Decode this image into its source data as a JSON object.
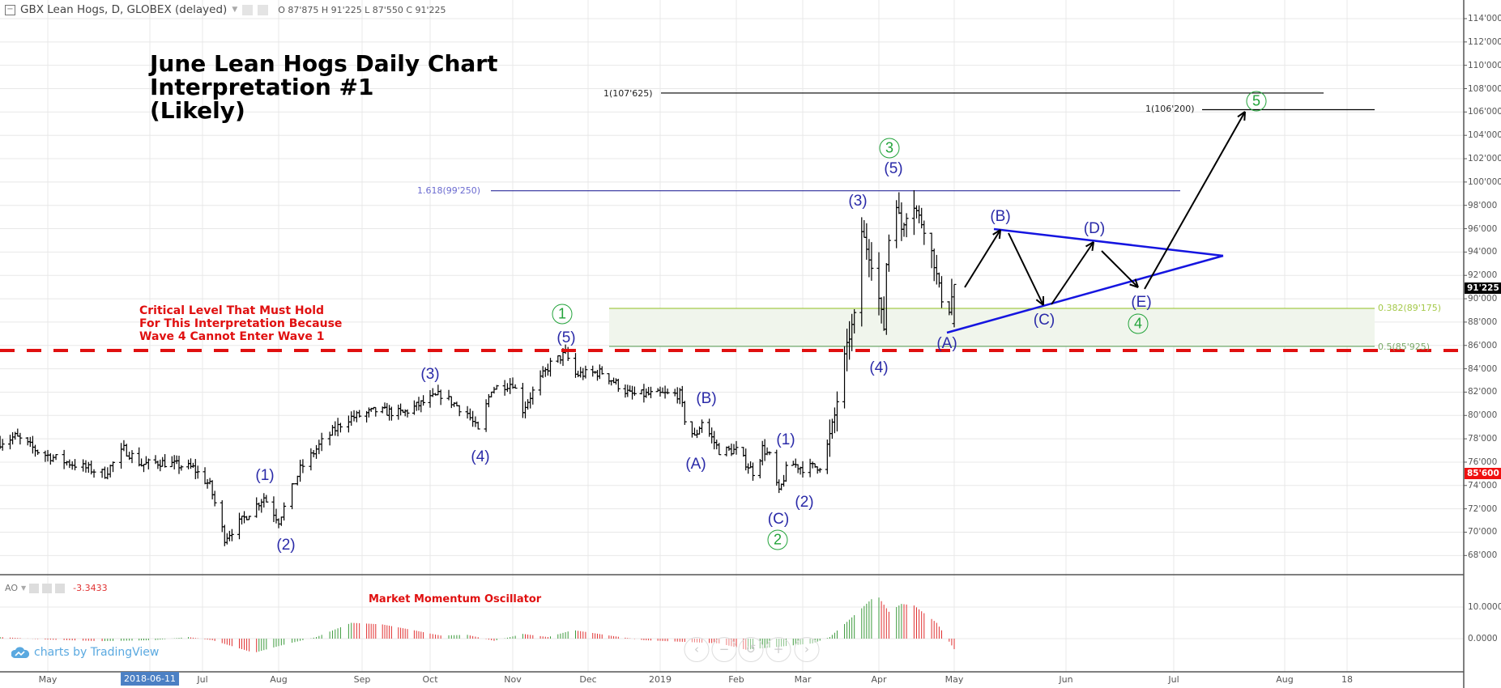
{
  "header": {
    "symbol": "GBX Lean Hogs, D, GLOBEX (delayed)",
    "ohlc_text": "O 87'875  H 91'225  L 87'550  C 91'225",
    "ohlc": {
      "open": 87.875,
      "high": 91.225,
      "low": 87.55,
      "close": 91.225
    }
  },
  "title": {
    "line1": "June Lean Hogs Daily Chart",
    "line2": "Interpretation #1",
    "line3": "(Likely)"
  },
  "critical_note": {
    "line1": "Critical Level That Must Hold",
    "line2": "For This Interpretation Because",
    "line3": "Wave 4 Cannot Enter Wave 1",
    "level": 85.6
  },
  "fib": {
    "ext_1618": {
      "label": "1.618(99'250)",
      "value": 99.25
    },
    "proj_107": {
      "label": "1(107'625)",
      "value": 107.625
    },
    "proj_106": {
      "label": "1(106'200)",
      "value": 106.2
    },
    "ret_382": {
      "label": "0.382(89'175)",
      "value": 89.175
    },
    "ret_5": {
      "label": "0.5(85'925)",
      "value": 85.925
    }
  },
  "wave_labels": [
    "(1)",
    "(2)",
    "(3)",
    "(4)",
    "(5)",
    "(A)",
    "(B)",
    "(C)",
    "(1)",
    "(2)",
    "(3)",
    "(5)",
    "(4)",
    "(A)",
    "(B)",
    "(C)",
    "(D)",
    "(E)"
  ],
  "major_waves": [
    "1",
    "2",
    "3",
    "4",
    "5"
  ],
  "price_axis": [
    "114'000",
    "112'000",
    "110'000",
    "108'000",
    "106'000",
    "104'000",
    "102'000",
    "100'000",
    "98'000",
    "96'000",
    "94'000",
    "92'000",
    "90'000",
    "88'000",
    "86'000",
    "84'000",
    "82'000",
    "80'000",
    "78'000",
    "76'000",
    "74'000",
    "72'000",
    "70'000",
    "68'000"
  ],
  "price_tags": {
    "last": "91'225",
    "alert": "85'600"
  },
  "time_axis": [
    "May",
    "2018-06-11",
    "Jul",
    "Aug",
    "Sep",
    "Oct",
    "Nov",
    "Dec",
    "2019",
    "Feb",
    "Mar",
    "Apr",
    "May",
    "Jun",
    "Jul",
    "Aug",
    "18"
  ],
  "oscillator": {
    "name": "AO",
    "value": "-3.3433",
    "note": "Market Momentum Oscillator",
    "axis": [
      "10.0000",
      "0.0000"
    ]
  },
  "watermark": "charts by TradingView",
  "nav_buttons": [
    "scroll-left",
    "zoom-out",
    "reset",
    "zoom-in",
    "scroll-right"
  ],
  "colors": {
    "bars": "#000000",
    "wave_blue": "#2a2aa8",
    "wave_green": "#22a33a",
    "critical_red": "#e01010",
    "triangle": "#1515e0",
    "fib_ext": "#2b2b9b",
    "fib_zone": "#f0f5ec",
    "ao_up": "#3c9a3c",
    "ao_down": "#e03030"
  },
  "chart_data": {
    "type": "ohlc",
    "timeframe": "D",
    "ylim": [
      67,
      115
    ],
    "grid": true,
    "price_path": [
      [
        "2018-04-12",
        77.7
      ],
      [
        "2018-04-18",
        78.2
      ],
      [
        "2018-04-28",
        76.8
      ],
      [
        "2018-05-08",
        76.0
      ],
      [
        "2018-05-22",
        75.0
      ],
      [
        "2018-05-29",
        77.1
      ],
      [
        "2018-06-05",
        75.8
      ],
      [
        "2018-06-13",
        76.0
      ],
      [
        "2018-06-27",
        75.5
      ],
      [
        "2018-07-04",
        74.0
      ],
      [
        "2018-07-10",
        69.5
      ],
      [
        "2018-07-17",
        71.0
      ],
      [
        "2018-07-26",
        73.0
      ],
      [
        "2018-08-01",
        71.0
      ],
      [
        "2018-08-09",
        75.4
      ],
      [
        "2018-08-17",
        77.7
      ],
      [
        "2018-08-26",
        79.7
      ],
      [
        "2018-09-07",
        80.4
      ],
      [
        "2018-09-19",
        80.2
      ],
      [
        "2018-10-05",
        81.8
      ],
      [
        "2018-10-15",
        80.2
      ],
      [
        "2018-10-19",
        78.6
      ],
      [
        "2018-10-24",
        82.3
      ],
      [
        "2018-11-01",
        82.8
      ],
      [
        "2018-11-05",
        80.5
      ],
      [
        "2018-11-11",
        82.8
      ],
      [
        "2018-11-16",
        84.4
      ],
      [
        "2018-11-22",
        85.3
      ],
      [
        "2018-11-26",
        83.5
      ],
      [
        "2018-12-07",
        83.7
      ],
      [
        "2018-12-19",
        81.8
      ],
      [
        "2019-01-09",
        81.8
      ],
      [
        "2019-01-11",
        79.7
      ],
      [
        "2019-01-15",
        78.1
      ],
      [
        "2019-01-18",
        79.5
      ],
      [
        "2019-01-25",
        77.0
      ],
      [
        "2019-02-01",
        77.0
      ],
      [
        "2019-02-09",
        74.9
      ],
      [
        "2019-02-12",
        77.2
      ],
      [
        "2019-02-15",
        76.5
      ],
      [
        "2019-02-19",
        73.3
      ],
      [
        "2019-02-23",
        76.0
      ],
      [
        "2019-03-01",
        75.5
      ],
      [
        "2019-03-09",
        75.7
      ],
      [
        "2019-03-14",
        80.0
      ],
      [
        "2019-03-18",
        85.0
      ],
      [
        "2019-03-22",
        88.5
      ],
      [
        "2019-03-24",
        96.5
      ],
      [
        "2019-03-29",
        93.0
      ],
      [
        "2019-04-01",
        90.0
      ],
      [
        "2019-04-03",
        87.5
      ],
      [
        "2019-04-04",
        93.0
      ],
      [
        "2019-04-07",
        99.3
      ],
      [
        "2019-04-10",
        96.0
      ],
      [
        "2019-04-14",
        98.5
      ],
      [
        "2019-04-21",
        95.0
      ],
      [
        "2019-04-24",
        92.0
      ],
      [
        "2019-04-28",
        88.0
      ],
      [
        "2019-05-01",
        91.225
      ]
    ],
    "projection": [
      [
        "2019-05-01",
        91.2
      ],
      [
        "2019-05-17",
        96.0
      ],
      [
        "2019-06-02",
        89.5
      ],
      [
        "2019-06-14",
        95.0
      ],
      [
        "2019-06-28",
        90.8
      ],
      [
        "2019-07-26",
        106.2
      ]
    ],
    "ao": {
      "ylim": [
        -8,
        16
      ],
      "anchors": [
        [
          "2018-04-12",
          0.5
        ],
        [
          "2018-05-01",
          -0.3
        ],
        [
          "2018-05-20",
          -0.8
        ],
        [
          "2018-06-10",
          -0.5
        ],
        [
          "2018-06-25",
          0.5
        ],
        [
          "2018-07-05",
          -0.5
        ],
        [
          "2018-07-22",
          -4.5
        ],
        [
          "2018-08-05",
          -1.5
        ],
        [
          "2018-08-15",
          0.5
        ],
        [
          "2018-08-28",
          5.0
        ],
        [
          "2018-09-10",
          4.5
        ],
        [
          "2018-09-25",
          2.5
        ],
        [
          "2018-10-05",
          1.0
        ],
        [
          "2018-10-15",
          1.2
        ],
        [
          "2018-10-25",
          -0.7
        ],
        [
          "2018-11-05",
          1.5
        ],
        [
          "2018-11-15",
          0.5
        ],
        [
          "2018-11-25",
          2.7
        ],
        [
          "2018-12-10",
          1.0
        ],
        [
          "2018-12-25",
          -0.5
        ],
        [
          "2019-01-10",
          -1.0
        ],
        [
          "2019-01-25",
          -1.5
        ],
        [
          "2019-02-05",
          -3.5
        ],
        [
          "2019-02-20",
          -2.5
        ],
        [
          "2019-03-05",
          -1.5
        ],
        [
          "2019-03-12",
          0.5
        ],
        [
          "2019-03-20",
          6.0
        ],
        [
          "2019-03-29",
          12.5
        ],
        [
          "2019-04-01",
          13.0
        ],
        [
          "2019-04-05",
          8.5
        ],
        [
          "2019-04-10",
          11.0
        ],
        [
          "2019-04-15",
          10.5
        ],
        [
          "2019-04-24",
          5.0
        ],
        [
          "2019-05-01",
          -3.3433
        ]
      ]
    }
  }
}
